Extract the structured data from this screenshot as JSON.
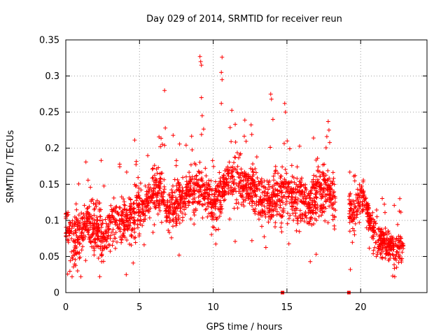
{
  "chart_data": {
    "type": "scatter",
    "title": "Day 029 of 2014, SRMTID for receiver reun",
    "xlabel": "GPS time / hours",
    "ylabel": "SRMTID / TECUs",
    "xlim": [
      0,
      24.5
    ],
    "ylim": [
      0,
      0.35
    ],
    "x_ticks": [
      0,
      5,
      10,
      15,
      20
    ],
    "x_tick_labels": [
      "0",
      "5",
      "10",
      "15",
      "20"
    ],
    "y_ticks": [
      0,
      0.05,
      0.1,
      0.15,
      0.2,
      0.25,
      0.3,
      0.35
    ],
    "y_tick_labels": [
      "0",
      "0.05",
      "0.1",
      "0.15",
      "0.2",
      "0.25",
      "0.3",
      "0.35"
    ],
    "grid": true,
    "marker": "+",
    "color": "#ff0000",
    "series": [
      {
        "name": "SRMTID",
        "segments": [
          {
            "x_start": 0.0,
            "x_end": 18.3,
            "profile": [
              [
                0.0,
                0.095
              ],
              [
                0.5,
                0.075
              ],
              [
                1.0,
                0.085
              ],
              [
                1.5,
                0.1
              ],
              [
                2.0,
                0.095
              ],
              [
                2.5,
                0.075
              ],
              [
                3.0,
                0.09
              ],
              [
                3.5,
                0.095
              ],
              [
                4.0,
                0.1
              ],
              [
                4.5,
                0.105
              ],
              [
                5.0,
                0.115
              ],
              [
                5.5,
                0.125
              ],
              [
                6.0,
                0.14
              ],
              [
                6.5,
                0.14
              ],
              [
                7.0,
                0.11
              ],
              [
                7.5,
                0.12
              ],
              [
                8.0,
                0.135
              ],
              [
                8.5,
                0.14
              ],
              [
                9.0,
                0.15
              ],
              [
                9.5,
                0.14
              ],
              [
                10.0,
                0.12
              ],
              [
                10.5,
                0.135
              ],
              [
                11.0,
                0.155
              ],
              [
                11.5,
                0.155
              ],
              [
                12.0,
                0.15
              ],
              [
                12.5,
                0.145
              ],
              [
                13.0,
                0.135
              ],
              [
                13.5,
                0.125
              ],
              [
                14.0,
                0.13
              ],
              [
                14.5,
                0.135
              ],
              [
                15.0,
                0.14
              ],
              [
                15.5,
                0.13
              ],
              [
                16.0,
                0.125
              ],
              [
                16.5,
                0.12
              ],
              [
                17.0,
                0.13
              ],
              [
                17.5,
                0.14
              ],
              [
                18.0,
                0.14
              ],
              [
                18.3,
                0.12
              ]
            ],
            "spread": 0.03,
            "density": 110
          },
          {
            "x_start": 19.2,
            "x_end": 22.9,
            "profile": [
              [
                19.2,
                0.12
              ],
              [
                19.6,
                0.11
              ],
              [
                20.0,
                0.14
              ],
              [
                20.3,
                0.13
              ],
              [
                20.6,
                0.1
              ],
              [
                21.0,
                0.08
              ],
              [
                21.5,
                0.07
              ],
              [
                22.0,
                0.065
              ],
              [
                22.5,
                0.06
              ],
              [
                22.9,
                0.06
              ]
            ],
            "spread": 0.022,
            "density": 110
          }
        ],
        "outliers": [
          [
            2.4,
            0.183
          ],
          [
            6.7,
            0.28
          ],
          [
            6.75,
            0.228
          ],
          [
            9.1,
            0.327
          ],
          [
            9.15,
            0.32
          ],
          [
            9.2,
            0.315
          ],
          [
            9.2,
            0.27
          ],
          [
            9.25,
            0.245
          ],
          [
            10.6,
            0.326
          ],
          [
            10.55,
            0.305
          ],
          [
            10.6,
            0.295
          ],
          [
            10.55,
            0.262
          ],
          [
            13.9,
            0.275
          ],
          [
            13.95,
            0.268
          ],
          [
            14.05,
            0.24
          ],
          [
            14.85,
            0.262
          ],
          [
            14.9,
            0.25
          ],
          [
            17.8,
            0.237
          ],
          [
            17.85,
            0.225
          ],
          [
            19.3,
            0.032
          ],
          [
            4.1,
            0.025
          ],
          [
            0.8,
            0.03
          ]
        ],
        "zero_markers": [
          14.7,
          19.2
        ]
      }
    ]
  }
}
